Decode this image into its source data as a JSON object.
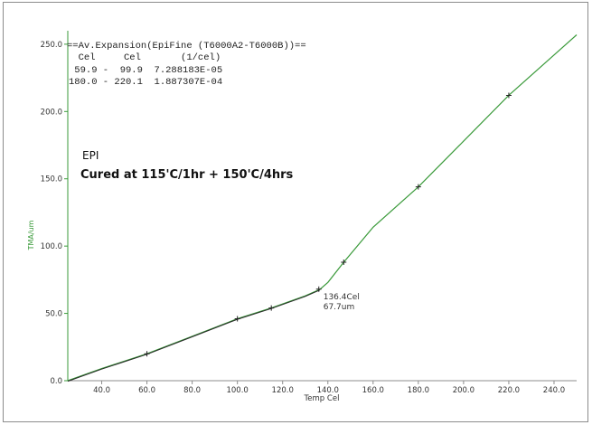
{
  "chart_data": {
    "type": "line",
    "xlabel": "Temp Cel",
    "ylabel": "TMA/um",
    "xlim": [
      25,
      250
    ],
    "ylim": [
      0,
      260
    ],
    "x_ticks": [
      "40.0",
      "60.0",
      "80.0",
      "100.0",
      "120.0",
      "140.0",
      "160.0",
      "180.0",
      "200.0",
      "220.0",
      "240.0"
    ],
    "y_ticks": [
      "0.0",
      "50.0",
      "100.0",
      "150.0",
      "200.0",
      "250.0"
    ],
    "series": [
      {
        "x": [
          25,
          40,
          60,
          80,
          100,
          115,
          130,
          136.4,
          140,
          147,
          160,
          180,
          200,
          220,
          240,
          250
        ],
        "y": [
          0,
          9,
          20,
          33,
          46,
          54,
          63,
          67.7,
          73,
          88,
          114,
          144,
          178,
          212,
          242,
          257
        ]
      }
    ],
    "markers": [
      {
        "x": 60,
        "y": 20
      },
      {
        "x": 100,
        "y": 46
      },
      {
        "x": 115,
        "y": 54
      },
      {
        "x": 136,
        "y": 68
      },
      {
        "x": 147,
        "y": 88
      },
      {
        "x": 180,
        "y": 144
      },
      {
        "x": 220,
        "y": 212
      }
    ],
    "annotation": {
      "x": 136.4,
      "y": 67.7,
      "line1": "136.4Cel",
      "line2": "67.7um"
    },
    "colors": {
      "curve": "#3a9a3a",
      "axis": "#3a9a3a",
      "marker": "#222222"
    }
  },
  "expansion_table": {
    "title": "==Av.Expansion(EpiFine (T6000A2-T6000B))==",
    "header": "  Cel     Cel       (1/cel)",
    "rows": [
      " 59.9 -  99.9  7.288183E-05",
      "180.0 - 220.1  1.887307E-04"
    ]
  },
  "labels": {
    "sample": "EPI",
    "cure": "Cured at 115'C/1hr + 150'C/4hrs"
  }
}
